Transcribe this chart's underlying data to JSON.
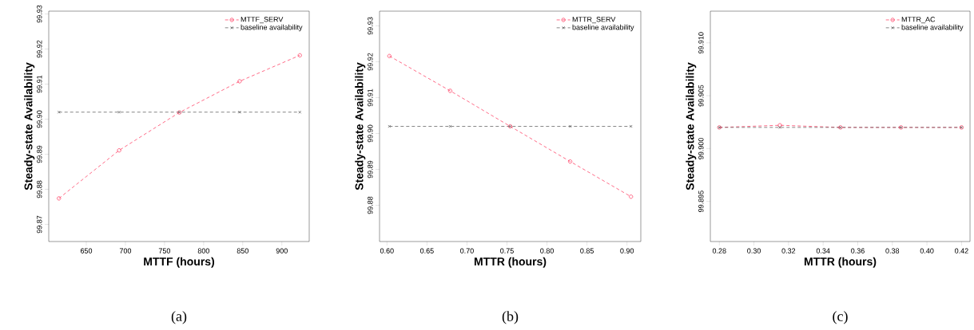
{
  "chart_data": [
    {
      "type": "line",
      "xlabel": "MTTF (hours)",
      "ylabel": "Steady-state Availability",
      "annotations": [
        "(a)"
      ],
      "legend": "top right",
      "line_style": "dashed",
      "xlim": [
        602,
        935
      ],
      "xticks": [
        650,
        700,
        750,
        800,
        850,
        900
      ],
      "ylim": [
        99.8651,
        99.9308
      ],
      "yticks": [
        {
          "value": 99.87,
          "label": "99.87"
        },
        {
          "value": 99.88,
          "label": "99.88"
        },
        {
          "value": 99.89,
          "label": "99.89"
        },
        {
          "value": 99.9,
          "label": "99.90"
        },
        {
          "value": 99.91,
          "label": "99.91"
        },
        {
          "value": 99.92,
          "label": "99.92"
        },
        {
          "value": 99.93,
          "label": "99.93"
        }
      ],
      "series": [
        {
          "name": "MTTF_SERV",
          "color": "#ff2d55",
          "marker": "circle",
          "x": [
            615,
            692,
            769,
            846,
            923
          ],
          "values": [
            99.8774,
            99.8911,
            99.9019,
            99.9108,
            99.9182
          ]
        },
        {
          "name": "baseline availability",
          "color": "#555555",
          "marker": "cross",
          "x": [
            615,
            692,
            769,
            846,
            923
          ],
          "values": [
            99.902,
            99.902,
            99.902,
            99.902,
            99.902
          ]
        }
      ]
    },
    {
      "type": "line",
      "xlabel": "MTTR (hours)",
      "ylabel": "Steady-state Availability",
      "annotations": [
        "(b)"
      ],
      "legend": "top right",
      "line_style": "dashed",
      "xlim": [
        0.5907,
        0.9173
      ],
      "xticks": [
        {
          "value": 0.6,
          "label": "0.60"
        },
        {
          "value": 0.65,
          "label": "0.65"
        },
        {
          "value": 0.7,
          "label": "0.70"
        },
        {
          "value": 0.75,
          "label": "0.75"
        },
        {
          "value": 0.8,
          "label": "0.80"
        },
        {
          "value": 0.85,
          "label": "0.85"
        },
        {
          "value": 0.9,
          "label": "0.90"
        }
      ],
      "ylim": [
        99.8699,
        99.9341
      ],
      "yticks": [
        {
          "value": 99.88,
          "label": "99.88"
        },
        {
          "value": 99.89,
          "label": "99.89"
        },
        {
          "value": 99.9,
          "label": "99.90"
        },
        {
          "value": 99.91,
          "label": "99.91"
        },
        {
          "value": 99.92,
          "label": "99.92"
        },
        {
          "value": 99.93,
          "label": "99.93"
        }
      ],
      "series": [
        {
          "name": "MTTR_SERV",
          "color": "#ff2d55",
          "marker": "circle",
          "x": [
            0.603,
            0.679,
            0.754,
            0.829,
            0.905
          ],
          "values": [
            99.9216,
            99.9119,
            99.902,
            99.8922,
            99.8824
          ]
        },
        {
          "name": "baseline availability",
          "color": "#555555",
          "marker": "cross",
          "x": [
            0.603,
            0.679,
            0.754,
            0.829,
            0.905
          ],
          "values": [
            99.902,
            99.902,
            99.902,
            99.902,
            99.902
          ]
        }
      ]
    },
    {
      "type": "line",
      "xlabel": "MTTR (hours)",
      "ylabel": "Steady-state Availability",
      "annotations": [
        "(c)"
      ],
      "legend": "top right",
      "line_style": "dashed",
      "xlim": [
        0.2748,
        0.4249
      ],
      "xticks": [
        {
          "value": 0.28,
          "label": "0.28"
        },
        {
          "value": 0.3,
          "label": "0.30"
        },
        {
          "value": 0.32,
          "label": "0.32"
        },
        {
          "value": 0.34,
          "label": "0.34"
        },
        {
          "value": 0.36,
          "label": "0.36"
        },
        {
          "value": 0.38,
          "label": "0.38"
        },
        {
          "value": 0.4,
          "label": "0.40"
        },
        {
          "value": 0.42,
          "label": "0.42"
        }
      ],
      "ylim": [
        99.8912,
        99.913
      ],
      "yticks": [
        {
          "value": 99.895,
          "label": "99.895"
        },
        {
          "value": 99.9,
          "label": "99.900"
        },
        {
          "value": 99.905,
          "label": "99.905"
        },
        {
          "value": 99.91,
          "label": "99.910"
        }
      ],
      "series": [
        {
          "name": "MTTR_AC",
          "color": "#ff2d55",
          "marker": "circle",
          "x": [
            0.28,
            0.315,
            0.35,
            0.385,
            0.42
          ],
          "values": [
            99.902,
            99.9022,
            99.902,
            99.902,
            99.902
          ]
        },
        {
          "name": "baseline availability",
          "color": "#555555",
          "marker": "cross",
          "x": [
            0.28,
            0.315,
            0.35,
            0.385,
            0.42
          ],
          "values": [
            99.902,
            99.902,
            99.902,
            99.902,
            99.902
          ]
        }
      ]
    }
  ]
}
